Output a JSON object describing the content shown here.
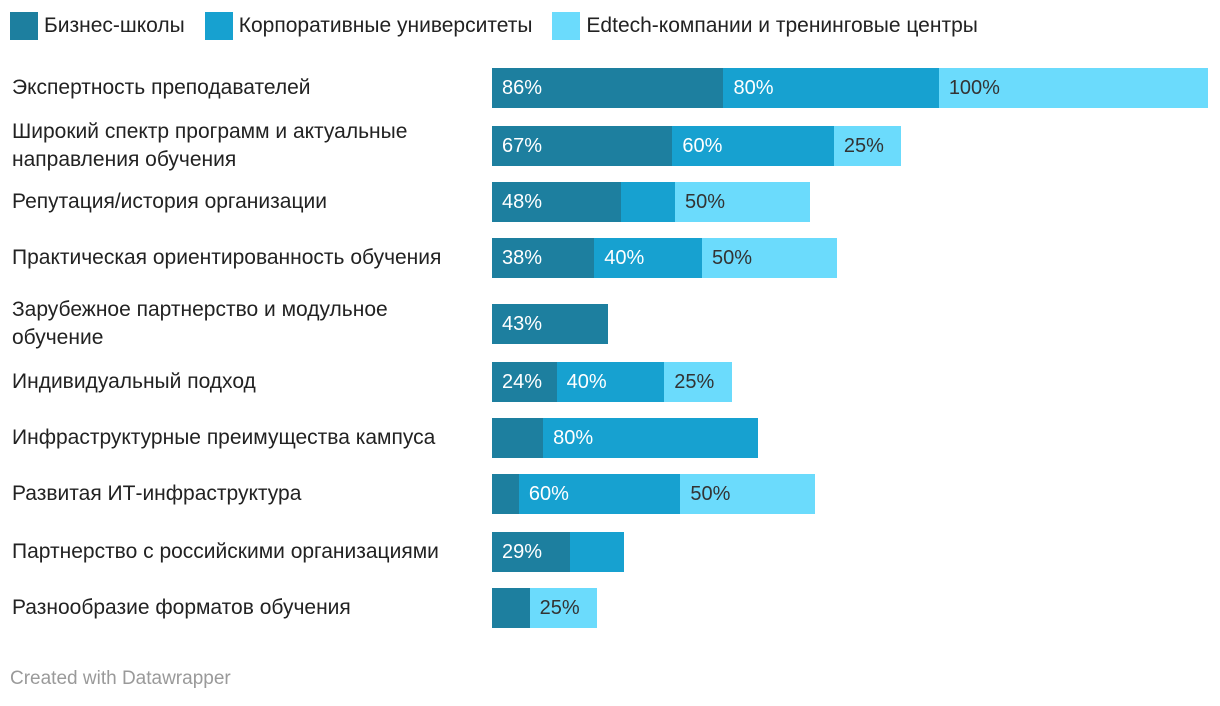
{
  "footer": "Created with Datawrapper",
  "chart_data": {
    "type": "bar",
    "orientation": "horizontal",
    "stacked": true,
    "title": "",
    "xlabel": "",
    "ylabel": "",
    "legend_position": "top-left",
    "grid": false,
    "categories": [
      "Экспертность преподавателей",
      "Широкий спектр программ и актуальные направления обучения",
      "Репутация/история организации",
      "Практическая ориентированность обучения",
      "Зарубежное партнерство и модульное обучение",
      "Индивидуальный подход",
      "Инфраструктурные преимущества кампуса",
      "Развитая ИТ-инфраструктура",
      "Партнерство с российскими организациями",
      "Разнообразие форматов обучения"
    ],
    "series": [
      {
        "name": "Бизнес-школы",
        "color": "#1d7f9f",
        "values": [
          86,
          67,
          48,
          38,
          43,
          24,
          19,
          10,
          29,
          14
        ],
        "labels": [
          "86%",
          "67%",
          "48%",
          "38%",
          "43%",
          "24%",
          "",
          "",
          "29%",
          ""
        ]
      },
      {
        "name": "Корпоративные университеты",
        "color": "#17a1d0",
        "values": [
          80,
          60,
          20,
          40,
          0,
          40,
          80,
          60,
          20,
          0
        ],
        "labels": [
          "80%",
          "60%",
          "",
          "40%",
          "",
          "40%",
          "80%",
          "60%",
          "",
          ""
        ]
      },
      {
        "name": "Edtech-компании и тренинговые центры",
        "color": "#6bdbfc",
        "values": [
          100,
          25,
          50,
          50,
          0,
          25,
          0,
          50,
          0,
          25
        ],
        "labels": [
          "100%",
          "25%",
          "50%",
          "50%",
          "",
          "25%",
          "",
          "50%",
          "",
          "25%"
        ]
      }
    ]
  }
}
